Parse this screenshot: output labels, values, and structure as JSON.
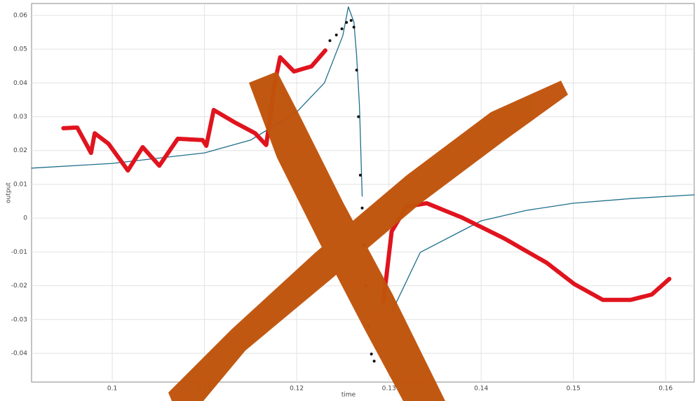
{
  "chart_data": {
    "type": "line",
    "xlabel": "time",
    "ylabel": "output",
    "xlim": [
      0.09125,
      0.1631
    ],
    "xticks": [
      0.1,
      0.11,
      0.12,
      0.13,
      0.14,
      0.15,
      0.16
    ],
    "ylim": [
      -0.0485,
      0.0635
    ],
    "yticks": [
      0.06,
      0.05,
      0.04,
      0.03,
      0.02,
      0.01,
      0,
      -0.01,
      -0.02,
      -0.03,
      -0.04
    ],
    "grid": true,
    "series": [
      {
        "color": "#1f6f8b",
        "style": "line",
        "x": [
          0.09125,
          0.1,
          0.11,
          0.115,
          0.12,
          0.123,
          0.125,
          0.1256,
          0.1262,
          0.1265,
          0.1268,
          0.1271,
          0.128,
          0.1303,
          0.1334,
          0.14,
          0.1449,
          0.15,
          0.1563,
          0.1631
        ],
        "values": [
          0.0148,
          0.0162,
          0.0193,
          0.0231,
          0.0314,
          0.04,
          0.054,
          0.0625,
          0.058,
          0.048,
          0.0334,
          0.0065,
          null,
          -0.0278,
          -0.0101,
          -0.0008,
          0.0023,
          0.0044,
          0.0058,
          0.0069
        ]
      },
      {
        "color": "#e0141e",
        "style": "thick",
        "x": [
          0.0947,
          0.0962,
          0.0977,
          0.0981,
          0.0996,
          0.1017,
          0.1033,
          0.1051,
          0.1071,
          0.1098,
          0.1102,
          0.111,
          0.1133,
          0.1155,
          0.1167,
          0.1176,
          0.1182,
          0.1197,
          0.1216,
          0.1231,
          0.127,
          0.1294,
          0.1303,
          0.1319,
          0.1341,
          0.1379,
          0.1425,
          0.1471,
          0.1501,
          0.1532,
          0.1562,
          0.1585,
          0.1604
        ],
        "values": [
          0.0266,
          0.0268,
          0.0193,
          0.0251,
          0.022,
          0.0141,
          0.021,
          0.0155,
          0.0235,
          0.0231,
          0.0214,
          0.032,
          0.0283,
          0.0251,
          0.0216,
          0.0397,
          0.0476,
          0.0434,
          0.0449,
          0.0496,
          null,
          -0.0246,
          -0.0039,
          0.0034,
          0.0044,
          0.0002,
          -0.006,
          -0.0132,
          -0.0195,
          -0.0242,
          -0.0242,
          -0.0226,
          -0.018
        ]
      },
      {
        "color": "#111111",
        "style": "dots",
        "x": [
          0.1236,
          0.1243,
          0.1249,
          0.1254,
          0.1259,
          0.1262,
          0.1265,
          0.1267,
          0.1269,
          0.1271,
          0.1273,
          0.1275,
          0.1278,
          0.1281,
          0.1284
        ],
        "values": [
          0.0525,
          0.0542,
          0.056,
          0.0579,
          0.0585,
          0.0565,
          0.0438,
          0.03,
          0.0127,
          0.003,
          -0.008,
          -0.02,
          -0.032,
          -0.0402,
          -0.0423
        ]
      }
    ]
  }
}
